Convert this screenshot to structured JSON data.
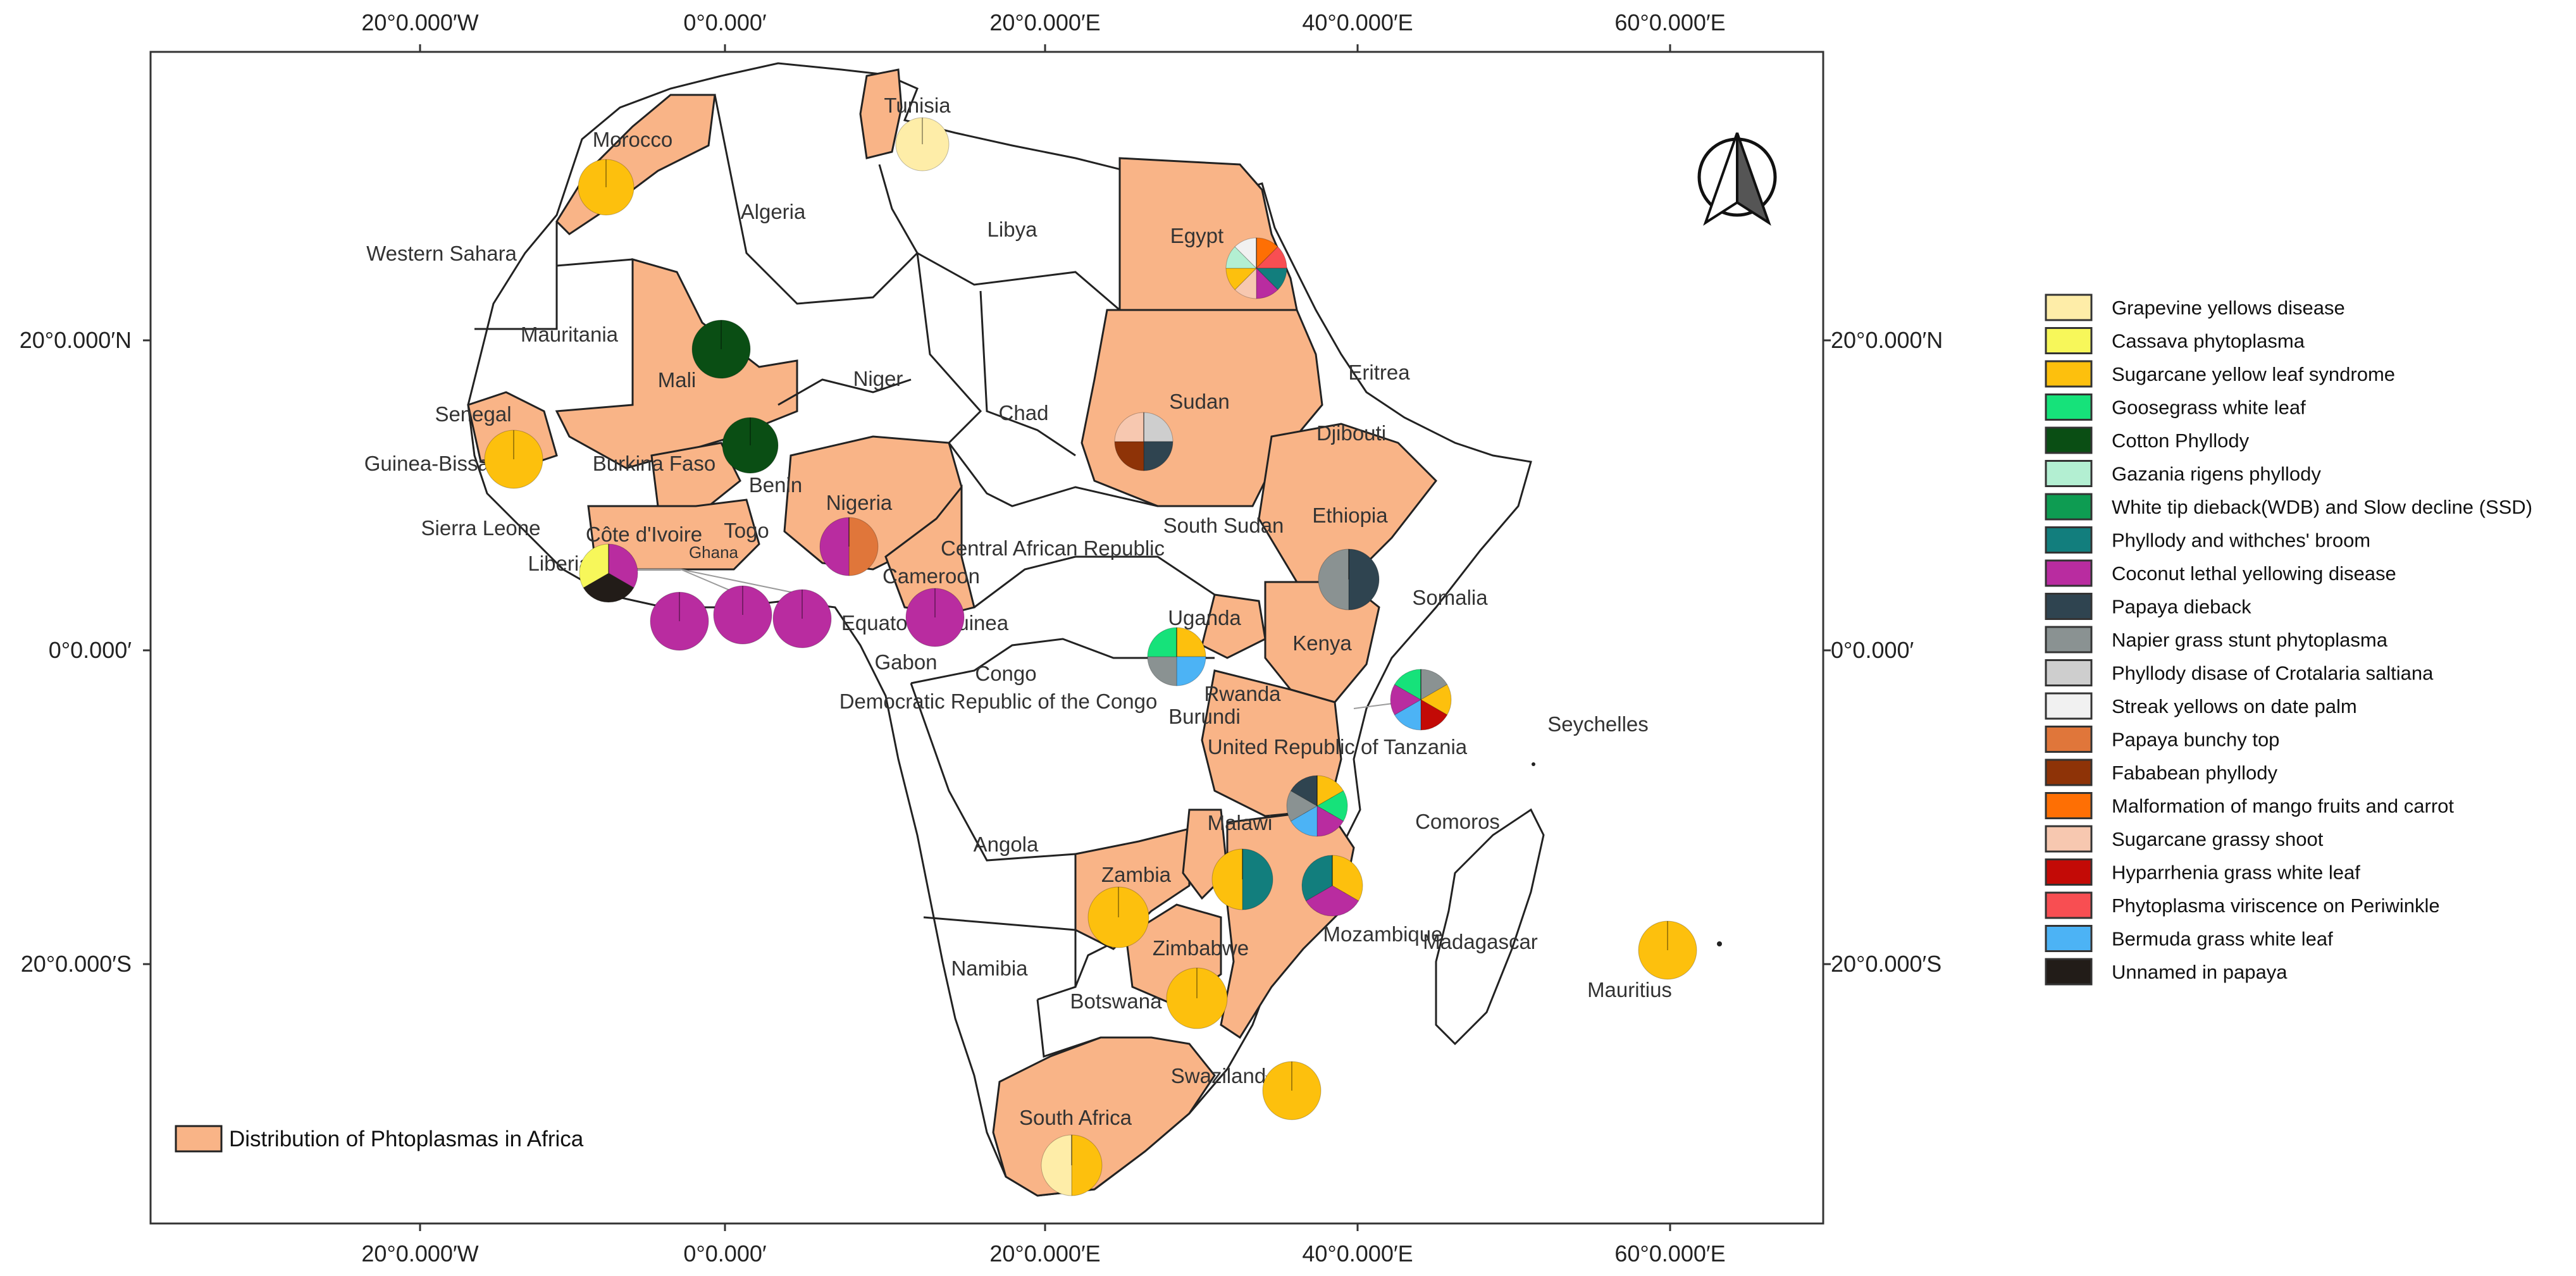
{
  "axes": {
    "top": [
      "20°0.000′W",
      "0°0.000′",
      "20°0.000′E",
      "40°0.000′E",
      "60°0.000′E"
    ],
    "bottom": [
      "20°0.000′W",
      "0°0.000′",
      "20°0.000′E",
      "40°0.000′E",
      "60°0.000′E"
    ],
    "left": [
      "20°0.000′N",
      "0°0.000′",
      "20°0.000′S"
    ],
    "right": [
      "20°0.000′N",
      "0°0.000′",
      "20°0.000′S"
    ],
    "lon_values": [
      -20,
      0,
      20,
      40,
      60
    ],
    "lat_values": [
      20,
      0,
      -20
    ]
  },
  "colors": {
    "affected": "#F9B487",
    "unaffected": "#FFFFFF",
    "border": "#222222"
  },
  "legend": [
    {
      "label": "Grapevine yellows disease",
      "color": "#FEEDA8"
    },
    {
      "label": "Cassava phytoplasma",
      "color": "#F7F75A"
    },
    {
      "label": "Sugarcane yellow leaf syndrome",
      "color": "#FDC00D"
    },
    {
      "label": "Goosegrass white leaf",
      "color": "#16E27A"
    },
    {
      "label": "Cotton Phyllody",
      "color": "#0A4E14"
    },
    {
      "label": "Gazania rigens phyllody",
      "color": "#B3EFD2"
    },
    {
      "label": "White tip dieback(WDB) and Slow decline (SSD)",
      "color": "#0E9C52"
    },
    {
      "label": "Phyllody and withches' broom",
      "color": "#127E7D"
    },
    {
      "label": "Coconut lethal yellowing disease",
      "color": "#B92CA0"
    },
    {
      "label": "Papaya dieback",
      "color": "#2F4450"
    },
    {
      "label": "Napier grass stunt phytoplasma",
      "color": "#8A9292"
    },
    {
      "label": "Phyllody disase of Crotalaria saltiana",
      "color": "#CECECE"
    },
    {
      "label": "Streak yellows on date palm",
      "color": "#F1F1F1"
    },
    {
      "label": "Papaya bunchy top",
      "color": "#E0763A"
    },
    {
      "label": "Fababean phyllody",
      "color": "#8E3307"
    },
    {
      "label": "Malformation of mango fruits and carrot",
      "color": "#FE6F04"
    },
    {
      "label": "Sugarcane grassy shoot",
      "color": "#F7C8B0"
    },
    {
      "label": "Hyparrhenia grass white leaf",
      "color": "#C30A06"
    },
    {
      "label": "Phytoplasma viriscence on Periwinkle",
      "color": "#F84E52"
    },
    {
      "label": "Bermuda grass white leaf",
      "color": "#4CB3F5"
    },
    {
      "label": "Unnamed in papaya",
      "color": "#221C18"
    }
  ],
  "box_legend": {
    "label": "Distribution of Phtoplasmas in Africa",
    "color": "#F9B487"
  },
  "countries": [
    {
      "name": "Tunisia",
      "affected": true
    },
    {
      "name": "Morocco",
      "affected": true
    },
    {
      "name": "Algeria",
      "affected": false
    },
    {
      "name": "Libya",
      "affected": false
    },
    {
      "name": "Egypt",
      "affected": true
    },
    {
      "name": "Western Sahara",
      "affected": false
    },
    {
      "name": "Mauritania",
      "affected": false
    },
    {
      "name": "Mali",
      "affected": true
    },
    {
      "name": "Niger",
      "affected": false
    },
    {
      "name": "Chad",
      "affected": false
    },
    {
      "name": "Sudan",
      "affected": true
    },
    {
      "name": "Eritrea",
      "affected": false
    },
    {
      "name": "Senegal",
      "affected": true
    },
    {
      "name": "Guinea-Bissau",
      "affected": true
    },
    {
      "name": "Burkina Faso",
      "affected": true
    },
    {
      "name": "Benin",
      "affected": true
    },
    {
      "name": "Nigeria",
      "affected": true
    },
    {
      "name": "Djibouti",
      "affected": false
    },
    {
      "name": "Sierra Leone",
      "affected": false
    },
    {
      "name": "Côte d'Ivoire",
      "affected": true
    },
    {
      "name": "Togo",
      "affected": true
    },
    {
      "name": "Ghana",
      "affected": true
    },
    {
      "name": "Liberia",
      "affected": false
    },
    {
      "name": "Central African Republic",
      "affected": false
    },
    {
      "name": "South Sudan",
      "affected": false
    },
    {
      "name": "Ethiopia",
      "affected": true
    },
    {
      "name": "Cameroon",
      "affected": true
    },
    {
      "name": "Equatorial Guinea",
      "affected": false
    },
    {
      "name": "Somalia",
      "affected": false
    },
    {
      "name": "Uganda",
      "affected": true
    },
    {
      "name": "Gabon",
      "affected": false
    },
    {
      "name": "Congo",
      "affected": false
    },
    {
      "name": "Kenya",
      "affected": true
    },
    {
      "name": "Rwanda",
      "affected": false
    },
    {
      "name": "Burundi",
      "affected": false
    },
    {
      "name": "Democratic Republic of the Congo",
      "affected": false
    },
    {
      "name": "United Republic of Tanzania",
      "affected": true
    },
    {
      "name": "Seychelles",
      "affected": false
    },
    {
      "name": "Malawi",
      "affected": true
    },
    {
      "name": "Angola",
      "affected": false
    },
    {
      "name": "Comoros",
      "affected": false
    },
    {
      "name": "Zambia",
      "affected": true
    },
    {
      "name": "Mozambique",
      "affected": true
    },
    {
      "name": "Madagascar",
      "affected": false
    },
    {
      "name": "Zimbabwe",
      "affected": true
    },
    {
      "name": "Namibia",
      "affected": false
    },
    {
      "name": "Botswana",
      "affected": false
    },
    {
      "name": "Mauritius",
      "affected": true
    },
    {
      "name": "Swaziland",
      "affected": true
    },
    {
      "name": "South Africa",
      "affected": true
    }
  ],
  "pies": [
    {
      "place": "Tunisia",
      "slices": [
        {
          "disease": "Grapevine yellows disease",
          "share": 1
        }
      ]
    },
    {
      "place": "Morocco",
      "slices": [
        {
          "disease": "Sugarcane yellow leaf syndrome",
          "share": 1
        }
      ]
    },
    {
      "place": "Egypt",
      "slices": [
        {
          "disease": "Malformation of mango fruits and carrot",
          "share": 1
        },
        {
          "disease": "Phytoplasma viriscence on Periwinkle",
          "share": 1
        },
        {
          "disease": "Phyllody and withches' broom",
          "share": 1
        },
        {
          "disease": "Coconut lethal yellowing disease",
          "share": 1
        },
        {
          "disease": "Sugarcane grassy shoot",
          "share": 1
        },
        {
          "disease": "Sugarcane yellow leaf syndrome",
          "share": 1
        },
        {
          "disease": "Gazania rigens phyllody",
          "share": 1
        },
        {
          "disease": "Streak yellows on date palm",
          "share": 1
        }
      ]
    },
    {
      "place": "Mali",
      "slices": [
        {
          "disease": "Cotton Phyllody",
          "share": 1
        }
      ]
    },
    {
      "place": "Senegal",
      "slices": [
        {
          "disease": "Sugarcane yellow leaf syndrome",
          "share": 1
        }
      ]
    },
    {
      "place": "Burkina Faso",
      "slices": [
        {
          "disease": "Cotton Phyllody",
          "share": 1
        }
      ]
    },
    {
      "place": "Sudan",
      "slices": [
        {
          "disease": "Phyllody disase of Crotalaria saltiana",
          "share": 1
        },
        {
          "disease": "Papaya dieback",
          "share": 1
        },
        {
          "disease": "Fababean phyllody",
          "share": 1
        },
        {
          "disease": "Sugarcane grassy shoot",
          "share": 1
        }
      ]
    },
    {
      "place": "Nigeria",
      "slices": [
        {
          "disease": "Papaya bunchy top",
          "share": 1
        },
        {
          "disease": "Coconut lethal yellowing disease",
          "share": 1
        }
      ]
    },
    {
      "place": "Côte d'Ivoire",
      "slices": [
        {
          "disease": "Coconut lethal yellowing disease",
          "share": 1
        },
        {
          "disease": "Unnamed in papaya",
          "share": 1
        },
        {
          "disease": "Cassava phytoplasma",
          "share": 1
        }
      ]
    },
    {
      "place": "Ghana",
      "slices": [
        {
          "disease": "Coconut lethal yellowing disease",
          "share": 1
        }
      ]
    },
    {
      "place": "Togo",
      "slices": [
        {
          "disease": "Coconut lethal yellowing disease",
          "share": 1
        }
      ]
    },
    {
      "place": "Benin",
      "slices": [
        {
          "disease": "Coconut lethal yellowing disease",
          "share": 1
        }
      ]
    },
    {
      "place": "Cameroon",
      "slices": [
        {
          "disease": "Coconut lethal yellowing disease",
          "share": 1
        }
      ]
    },
    {
      "place": "Ethiopia",
      "slices": [
        {
          "disease": "Papaya dieback",
          "share": 1
        },
        {
          "disease": "Napier grass stunt phytoplasma",
          "share": 1
        }
      ]
    },
    {
      "place": "Uganda",
      "slices": [
        {
          "disease": "Sugarcane yellow leaf syndrome",
          "share": 1
        },
        {
          "disease": "Bermuda grass white leaf",
          "share": 1
        },
        {
          "disease": "Napier grass stunt phytoplasma",
          "share": 1
        },
        {
          "disease": "Goosegrass white leaf",
          "share": 1
        }
      ]
    },
    {
      "place": "Kenya",
      "slices": [
        {
          "disease": "Napier grass stunt phytoplasma",
          "share": 1
        },
        {
          "disease": "Sugarcane yellow leaf syndrome",
          "share": 1
        },
        {
          "disease": "Hyparrhenia grass white leaf",
          "share": 1
        },
        {
          "disease": "Bermuda grass white leaf",
          "share": 1
        },
        {
          "disease": "Coconut lethal yellowing disease",
          "share": 1
        },
        {
          "disease": "Goosegrass white leaf",
          "share": 1
        }
      ]
    },
    {
      "place": "United Republic of Tanzania",
      "slices": [
        {
          "disease": "Sugarcane yellow leaf syndrome",
          "share": 1
        },
        {
          "disease": "Goosegrass white leaf",
          "share": 1
        },
        {
          "disease": "Coconut lethal yellowing disease",
          "share": 1
        },
        {
          "disease": "Bermuda grass white leaf",
          "share": 1
        },
        {
          "disease": "Napier grass stunt phytoplasma",
          "share": 1
        },
        {
          "disease": "Papaya dieback",
          "share": 1
        }
      ]
    },
    {
      "place": "Malawi",
      "slices": [
        {
          "disease": "Phyllody and withches' broom",
          "share": 1
        },
        {
          "disease": "Sugarcane yellow leaf syndrome",
          "share": 1
        }
      ]
    },
    {
      "place": "Mozambique",
      "slices": [
        {
          "disease": "Sugarcane yellow leaf syndrome",
          "share": 1
        },
        {
          "disease": "Coconut lethal yellowing disease",
          "share": 1
        },
        {
          "disease": "Phyllody and withches' broom",
          "share": 1
        }
      ]
    },
    {
      "place": "Zambia",
      "slices": [
        {
          "disease": "Sugarcane yellow leaf syndrome",
          "share": 1
        }
      ]
    },
    {
      "place": "Zimbabwe",
      "slices": [
        {
          "disease": "Sugarcane yellow leaf syndrome",
          "share": 1
        }
      ]
    },
    {
      "place": "Swaziland",
      "slices": [
        {
          "disease": "Sugarcane yellow leaf syndrome",
          "share": 1
        }
      ]
    },
    {
      "place": "South Africa",
      "slices": [
        {
          "disease": "Sugarcane yellow leaf syndrome",
          "share": 1
        },
        {
          "disease": "Grapevine yellows disease",
          "share": 1
        }
      ]
    },
    {
      "place": "Mauritius",
      "slices": [
        {
          "disease": "Sugarcane yellow leaf syndrome",
          "share": 1
        }
      ]
    }
  ]
}
